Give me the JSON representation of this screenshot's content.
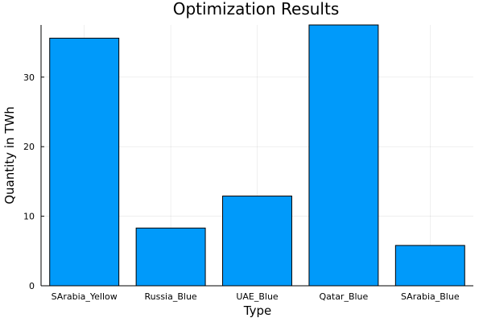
{
  "chart_data": {
    "type": "bar",
    "title": "Optimization Results",
    "xlabel": "Type",
    "ylabel": "Quantity in TWh",
    "categories": [
      "SArabia_Yellow",
      "Russia_Blue",
      "UAE_Blue",
      "Qatar_Blue",
      "SArabia_Blue"
    ],
    "values": [
      35.6,
      8.3,
      12.9,
      37.5,
      5.8
    ],
    "ylim": [
      0,
      37.5
    ],
    "yticks": [
      0,
      10,
      20,
      30
    ],
    "ytick_labels": [
      "0",
      "10",
      "20",
      "30"
    ],
    "grid": true,
    "legend": "none",
    "bar_color": "#009AFA"
  }
}
